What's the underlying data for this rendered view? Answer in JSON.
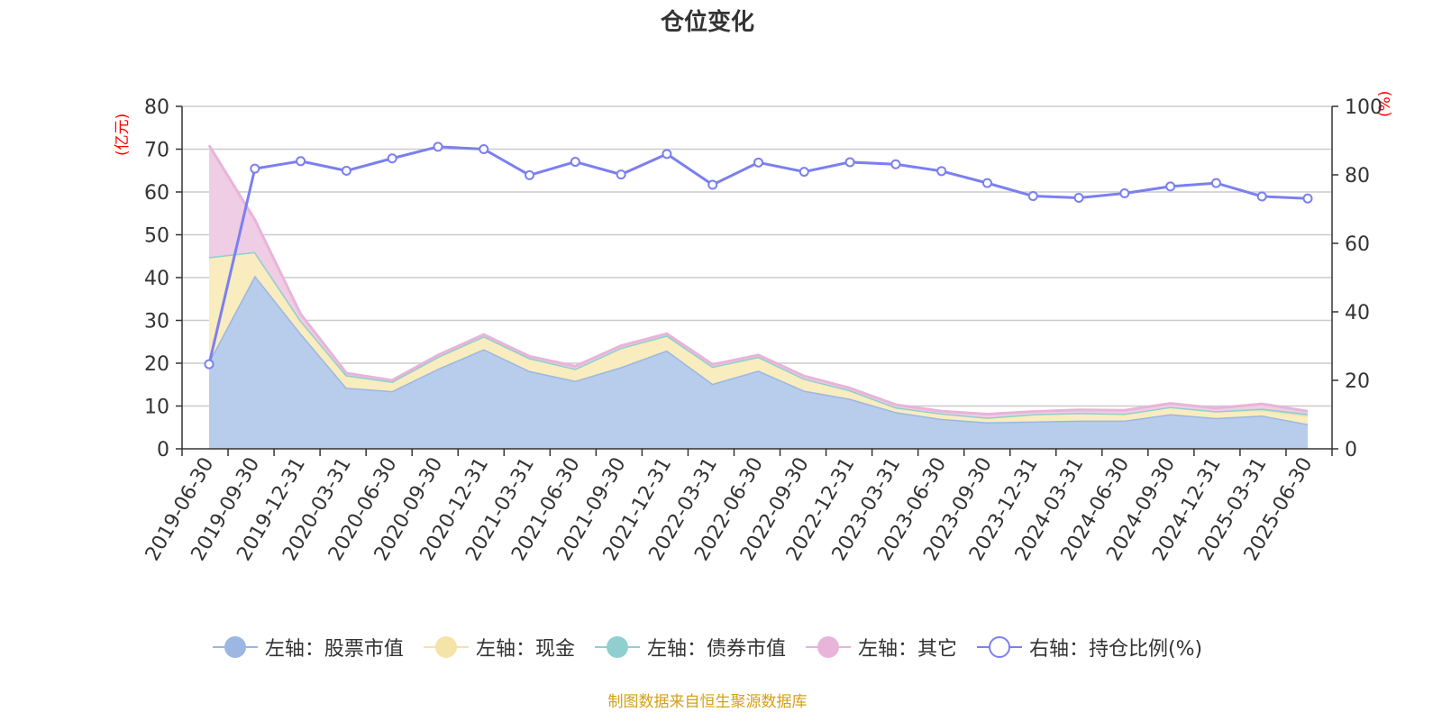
{
  "title": "仓位变化",
  "left_unit": "(亿元)",
  "right_unit": "(%)",
  "source": "制图数据来自恒生聚源数据库",
  "chart_data": {
    "type": "area",
    "x": [
      "2019-06-30",
      "2019-09-30",
      "2019-12-31",
      "2020-03-31",
      "2020-06-30",
      "2020-09-30",
      "2020-12-31",
      "2021-03-31",
      "2021-06-30",
      "2021-09-30",
      "2021-12-31",
      "2022-03-31",
      "2022-06-30",
      "2022-09-30",
      "2022-12-31",
      "2023-03-31",
      "2023-06-30",
      "2023-09-30",
      "2023-12-31",
      "2024-03-31",
      "2024-06-30",
      "2024-09-30",
      "2024-12-31",
      "2025-03-31",
      "2025-06-30"
    ],
    "y_left": {
      "ticks": [
        0,
        10,
        20,
        30,
        40,
        50,
        60,
        70,
        80
      ],
      "ylim": [
        0,
        80
      ]
    },
    "y_right": {
      "ticks": [
        0,
        20,
        40,
        60,
        80,
        100
      ],
      "ylim": [
        0,
        100
      ]
    },
    "grid": true,
    "legend_position": "bottom",
    "series": [
      {
        "name": "左轴：股票市值",
        "axis": "left",
        "kind": "stacked-area",
        "color": "#9bb7e2",
        "fill": "#b7cdeb",
        "values": [
          20.4,
          40.5,
          27.0,
          14.3,
          13.5,
          18.7,
          23.3,
          18.2,
          15.9,
          19.1,
          23.0,
          15.2,
          18.3,
          13.6,
          11.7,
          8.6,
          7.0,
          6.2,
          6.4,
          6.6,
          6.6,
          8.1,
          7.2,
          7.8,
          5.8
        ]
      },
      {
        "name": "左轴：现金",
        "axis": "left",
        "kind": "stacked-area",
        "color": "#f5e4a7",
        "fill": "#f9ecbe",
        "values": [
          24.4,
          5.5,
          3.0,
          2.9,
          2.2,
          2.8,
          3.0,
          3.0,
          2.8,
          4.5,
          3.5,
          4.0,
          3.2,
          2.8,
          2.0,
          1.1,
          1.3,
          1.1,
          1.7,
          1.8,
          1.6,
          1.7,
          1.6,
          1.2,
          1.9
        ]
      },
      {
        "name": "左轴：债券市值",
        "axis": "left",
        "kind": "stacked-area",
        "color": "#8fcfcf",
        "fill": "#a9dcdc",
        "values": [
          0,
          0,
          0,
          0,
          0,
          0,
          0,
          0,
          0,
          0,
          0,
          0,
          0,
          0,
          0,
          0,
          0,
          0,
          0,
          0,
          0,
          0,
          0,
          0.4,
          0.5
        ]
      },
      {
        "name": "左轴：其它",
        "axis": "left",
        "kind": "stacked-area",
        "color": "#e8b4d9",
        "fill": "#efcde5",
        "values": [
          26.1,
          7.5,
          1.5,
          0.5,
          0.3,
          0.4,
          0.4,
          0.4,
          0.6,
          0.5,
          0.4,
          0.5,
          0.4,
          0.6,
          0.5,
          0.6,
          0.5,
          0.8,
          0.6,
          0.7,
          0.8,
          0.8,
          0.7,
          1.1,
          0.6
        ]
      },
      {
        "name": "右轴：持仓比例(%)",
        "axis": "right",
        "kind": "line",
        "color": "#7b7ff0",
        "values": [
          24.7,
          81.8,
          84.0,
          81.2,
          84.8,
          88.2,
          87.5,
          79.9,
          83.8,
          80.1,
          86.1,
          77.1,
          83.6,
          80.9,
          83.7,
          83.1,
          81.1,
          77.6,
          73.8,
          73.3,
          74.6,
          76.6,
          77.6,
          73.7,
          73.1
        ]
      }
    ]
  }
}
